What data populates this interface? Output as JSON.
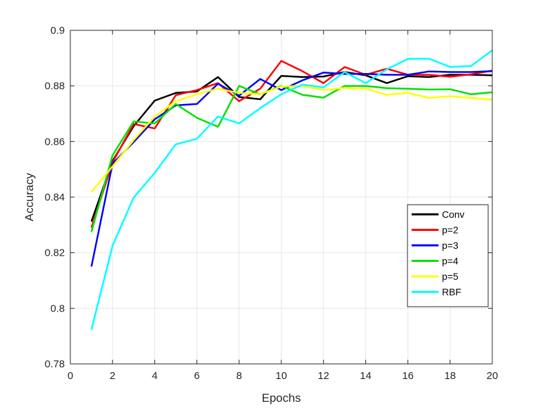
{
  "chart_data": {
    "type": "line",
    "title": "",
    "xlabel": "Epochs",
    "ylabel": "Accuracy",
    "xlim": [
      0,
      20
    ],
    "ylim": [
      0.78,
      0.9
    ],
    "xticks": [
      0,
      2,
      4,
      6,
      8,
      10,
      12,
      14,
      16,
      18,
      20
    ],
    "xtick_labels": [
      "0",
      "2",
      "4",
      "6",
      "8",
      "10",
      "12",
      "14",
      "16",
      "18",
      "20"
    ],
    "yticks": [
      0.78,
      0.8,
      0.82,
      0.84,
      0.86,
      0.88,
      0.9
    ],
    "ytick_labels": [
      "0.78",
      "0.8",
      "0.82",
      "0.84",
      "0.86",
      "0.88",
      "0.9"
    ],
    "grid": true,
    "legend_position": "right",
    "x": [
      1,
      2,
      3,
      4,
      5,
      6,
      7,
      8,
      9,
      10,
      11,
      12,
      13,
      14,
      15,
      16,
      17,
      18,
      19,
      20
    ],
    "series": [
      {
        "name": "Conv",
        "color": "#000000",
        "values": [
          0.8312,
          0.853,
          0.8655,
          0.8747,
          0.8775,
          0.878,
          0.8832,
          0.876,
          0.8752,
          0.8836,
          0.8832,
          0.8834,
          0.885,
          0.8838,
          0.881,
          0.8835,
          0.8832,
          0.884,
          0.884,
          0.8838
        ]
      },
      {
        "name": "p=2",
        "color": "#ff0000",
        "values": [
          0.829,
          0.8525,
          0.8663,
          0.8647,
          0.8767,
          0.8785,
          0.881,
          0.8745,
          0.879,
          0.889,
          0.8853,
          0.881,
          0.8868,
          0.884,
          0.8862,
          0.884,
          0.884,
          0.8833,
          0.8842,
          0.8855
        ]
      },
      {
        "name": "p=3",
        "color": "#0000ff",
        "values": [
          0.815,
          0.852,
          0.8598,
          0.868,
          0.873,
          0.8735,
          0.8808,
          0.8765,
          0.8825,
          0.8785,
          0.882,
          0.8848,
          0.8843,
          0.8843,
          0.884,
          0.884,
          0.8852,
          0.885,
          0.885,
          0.8853
        ]
      },
      {
        "name": "p=4",
        "color": "#00e000",
        "values": [
          0.8275,
          0.855,
          0.8672,
          0.8665,
          0.8735,
          0.8685,
          0.8653,
          0.88,
          0.877,
          0.88,
          0.8768,
          0.8758,
          0.88,
          0.88,
          0.8792,
          0.879,
          0.8787,
          0.8788,
          0.877,
          0.8777
        ]
      },
      {
        "name": "p=5",
        "color": "#ffff00",
        "values": [
          0.8418,
          0.851,
          0.8605,
          0.869,
          0.8745,
          0.877,
          0.879,
          0.8775,
          0.877,
          0.8798,
          0.88,
          0.8785,
          0.8793,
          0.879,
          0.8768,
          0.8775,
          0.8757,
          0.8763,
          0.8757,
          0.875
        ]
      },
      {
        "name": "RBF",
        "color": "#00ffff",
        "values": [
          0.7923,
          0.8225,
          0.8398,
          0.8487,
          0.859,
          0.861,
          0.869,
          0.8665,
          0.872,
          0.877,
          0.8805,
          0.8795,
          0.885,
          0.881,
          0.886,
          0.8897,
          0.8898,
          0.8868,
          0.8872,
          0.8928
        ]
      }
    ]
  }
}
